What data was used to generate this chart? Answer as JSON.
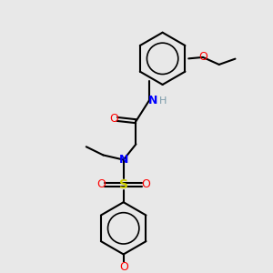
{
  "bg_color": "#e8e8e8",
  "bond_color": "#000000",
  "atom_colors": {
    "O": "#ff0000",
    "N": "#0000ff",
    "S": "#cccc00",
    "H": "#7a9aaa",
    "C": "#000000"
  },
  "figsize": [
    3.0,
    3.0
  ],
  "dpi": 100
}
